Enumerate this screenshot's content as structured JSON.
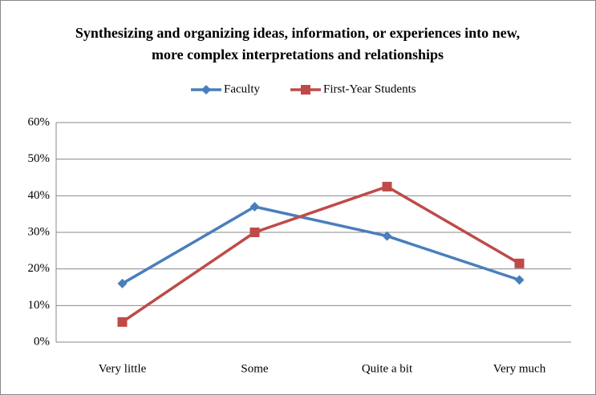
{
  "chart_data": {
    "type": "line",
    "title": [
      "Synthesizing and organizing ideas, information, or experiences into new,",
      "more complex interpretations and relationships"
    ],
    "categories": [
      "Very little",
      "Some",
      "Quite a bit",
      "Very much"
    ],
    "series": [
      {
        "name": "Faculty",
        "color": "#4a7ebb",
        "marker": "diamond",
        "values": [
          16,
          37,
          29,
          17
        ]
      },
      {
        "name": "First-Year Students",
        "color": "#be4b48",
        "marker": "square",
        "values": [
          5.5,
          30,
          42.5,
          21.5
        ]
      }
    ],
    "ylim": [
      0,
      60
    ],
    "yticks": [
      {
        "value": 0,
        "label": "0%"
      },
      {
        "value": 10,
        "label": "10%"
      },
      {
        "value": 20,
        "label": "20%"
      },
      {
        "value": 30,
        "label": "30%"
      },
      {
        "value": 40,
        "label": "40%"
      },
      {
        "value": 50,
        "label": "50%"
      },
      {
        "value": 60,
        "label": "60%"
      }
    ],
    "grid": true,
    "legend": "top"
  }
}
